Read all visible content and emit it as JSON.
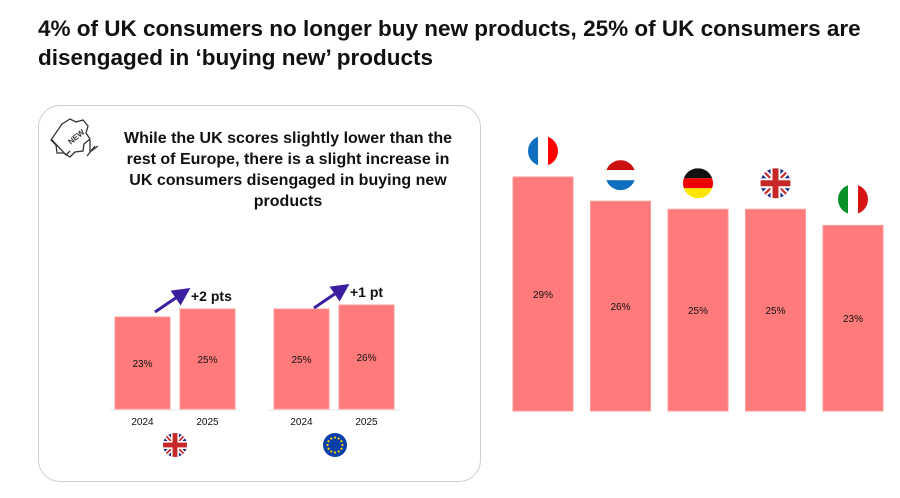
{
  "title": "4% of UK consumers no longer buy new products, 25% of UK consumers are disengaged in ‘buying new’ products",
  "panel": {
    "subtitle": "While the UK scores slightly lower than the rest of Europe, there is a slight increase in UK consumers disengaged in buying new products",
    "icon": "new-badge-icon"
  },
  "colors": {
    "bar": "#ff7b7b",
    "arrow": "#3b1fa0"
  },
  "chart_data": [
    {
      "type": "bar",
      "title": "",
      "groups": [
        {
          "flag": "uk",
          "categories": [
            "2024",
            "2025"
          ],
          "values": [
            23,
            25
          ],
          "labels": [
            "23%",
            "25%"
          ],
          "change": "+2 pts"
        },
        {
          "flag": "eu",
          "categories": [
            "2024",
            "2025"
          ],
          "values": [
            25,
            26
          ],
          "labels": [
            "25%",
            "26%"
          ],
          "change": "+1 pt"
        }
      ],
      "ylim": [
        0,
        30
      ]
    },
    {
      "type": "bar",
      "title": "",
      "categories": [
        "France",
        "Netherlands",
        "Germany",
        "UK",
        "Italy"
      ],
      "flags": [
        "fr",
        "nl",
        "de",
        "uk",
        "it"
      ],
      "values": [
        29,
        26,
        25,
        25,
        23
      ],
      "labels": [
        "29%",
        "26%",
        "25%",
        "25%",
        "23%"
      ],
      "ylim": [
        0,
        30
      ]
    }
  ]
}
